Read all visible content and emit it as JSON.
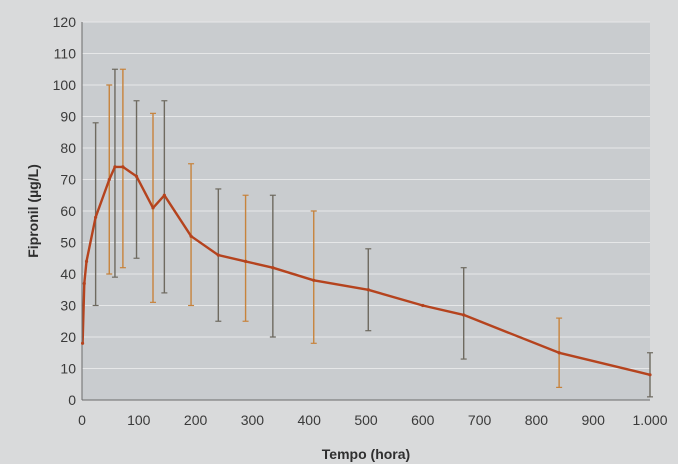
{
  "chart_data": {
    "type": "line",
    "title": "",
    "xlabel": "Tempo (hora)",
    "ylabel": "Fipronil (µg/L)",
    "xlim": [
      0,
      1000
    ],
    "ylim": [
      0,
      120
    ],
    "x_ticks": [
      0,
      100,
      200,
      300,
      400,
      500,
      600,
      700,
      800,
      900,
      1000
    ],
    "x_tick_labels": [
      "0",
      "100",
      "200",
      "300",
      "400",
      "500",
      "600",
      "700",
      "800",
      "900",
      "1.000"
    ],
    "y_ticks": [
      0,
      10,
      20,
      30,
      40,
      50,
      60,
      70,
      80,
      90,
      100,
      110,
      120
    ],
    "grid": true,
    "legend": "none",
    "colors": {
      "plot_background": "#c9cccf",
      "gridline": "#e6e7e8",
      "line": "#b5431e",
      "error_bar_a": "#6e6a60",
      "error_bar_b": "#c7833c",
      "page_background": "#d9dadb"
    },
    "series": [
      {
        "points": [
          {
            "x": 1,
            "y": 18,
            "err_low": 18,
            "err_high": 18
          },
          {
            "x": 4,
            "y": 37,
            "err_low": 37,
            "err_high": 37
          },
          {
            "x": 8,
            "y": 44,
            "err_low": 44,
            "err_high": 44
          },
          {
            "x": 24,
            "y": 58,
            "err_low": 30,
            "err_high": 88
          },
          {
            "x": 48,
            "y": 70,
            "err_low": 40,
            "err_high": 100
          },
          {
            "x": 58,
            "y": 74,
            "err_low": 39,
            "err_high": 105
          },
          {
            "x": 72,
            "y": 74,
            "err_low": 42,
            "err_high": 105
          },
          {
            "x": 96,
            "y": 71,
            "err_low": 45,
            "err_high": 95
          },
          {
            "x": 125,
            "y": 61,
            "err_low": 31,
            "err_high": 91
          },
          {
            "x": 145,
            "y": 65,
            "err_low": 34,
            "err_high": 95
          },
          {
            "x": 192,
            "y": 52,
            "err_low": 30,
            "err_high": 75
          },
          {
            "x": 240,
            "y": 46,
            "err_low": 25,
            "err_high": 67
          },
          {
            "x": 288,
            "y": 44,
            "err_low": 25,
            "err_high": 65
          },
          {
            "x": 336,
            "y": 42,
            "err_low": 20,
            "err_high": 65
          },
          {
            "x": 408,
            "y": 38,
            "err_low": 18,
            "err_high": 60
          },
          {
            "x": 504,
            "y": 35,
            "err_low": 22,
            "err_high": 48
          },
          {
            "x": 600,
            "y": 30,
            "err_low": 30,
            "err_high": 30
          },
          {
            "x": 672,
            "y": 27,
            "err_low": 13,
            "err_high": 42
          },
          {
            "x": 840,
            "y": 15,
            "err_low": 4,
            "err_high": 26
          },
          {
            "x": 1000,
            "y": 8,
            "err_low": 1,
            "err_high": 15
          }
        ]
      }
    ]
  }
}
